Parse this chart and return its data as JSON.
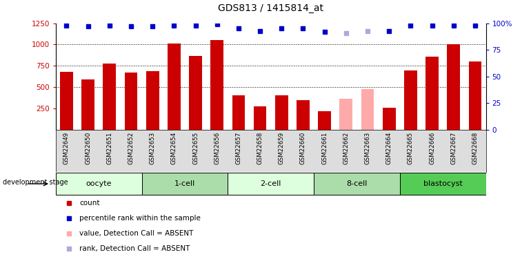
{
  "title": "GDS813 / 1415814_at",
  "samples": [
    "GSM22649",
    "GSM22650",
    "GSM22651",
    "GSM22652",
    "GSM22653",
    "GSM22654",
    "GSM22655",
    "GSM22656",
    "GSM22657",
    "GSM22658",
    "GSM22659",
    "GSM22660",
    "GSM22661",
    "GSM22662",
    "GSM22663",
    "GSM22664",
    "GSM22665",
    "GSM22666",
    "GSM22667",
    "GSM22668"
  ],
  "bar_values": [
    680,
    590,
    775,
    670,
    685,
    1010,
    865,
    1050,
    400,
    275,
    405,
    345,
    215,
    null,
    null,
    255,
    695,
    855,
    1000,
    800
  ],
  "absent_bar_values": [
    null,
    null,
    null,
    null,
    null,
    null,
    null,
    null,
    null,
    null,
    null,
    null,
    null,
    365,
    475,
    null,
    null,
    null,
    null,
    null
  ],
  "bar_color_normal": "#cc0000",
  "bar_color_absent": "#ffaaaa",
  "rank_values": [
    98,
    97,
    98,
    97,
    97,
    98,
    98,
    99,
    95,
    93,
    95,
    95,
    92,
    null,
    null,
    93,
    98,
    98,
    98,
    98
  ],
  "rank_absent_values": [
    null,
    null,
    null,
    null,
    null,
    null,
    null,
    null,
    null,
    null,
    null,
    null,
    null,
    91,
    93,
    null,
    null,
    null,
    null,
    null
  ],
  "rank_color_normal": "#0000cc",
  "rank_color_absent": "#aaaadd",
  "ylim_left": [
    0,
    1250
  ],
  "ylim_right": [
    0,
    100
  ],
  "yticks_left": [
    250,
    500,
    750,
    1000,
    1250
  ],
  "yticks_right": [
    0,
    25,
    50,
    75,
    100
  ],
  "groups": [
    {
      "label": "oocyte",
      "start": 0,
      "end": 4,
      "color": "#ddffdd"
    },
    {
      "label": "1-cell",
      "start": 4,
      "end": 8,
      "color": "#aaddaa"
    },
    {
      "label": "2-cell",
      "start": 8,
      "end": 12,
      "color": "#ddffdd"
    },
    {
      "label": "8-cell",
      "start": 12,
      "end": 16,
      "color": "#aaddaa"
    },
    {
      "label": "blastocyst",
      "start": 16,
      "end": 20,
      "color": "#55cc55"
    }
  ],
  "legend_items": [
    {
      "label": "count",
      "color": "#cc0000"
    },
    {
      "label": "percentile rank within the sample",
      "color": "#0000cc"
    },
    {
      "label": "value, Detection Call = ABSENT",
      "color": "#ffaaaa"
    },
    {
      "label": "rank, Detection Call = ABSENT",
      "color": "#aaaadd"
    }
  ],
  "dev_stage_label": "development stage",
  "sample_area_color": "#dddddd",
  "background_color": "#ffffff"
}
